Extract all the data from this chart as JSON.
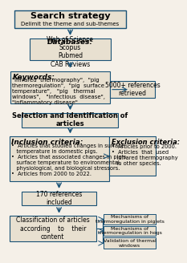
{
  "bg_color": "#f5f0e8",
  "box_bg": "#e8e0d0",
  "arrow_color": "#1a5276",
  "border_color": "#1a5276",
  "title_text": "Search strategy",
  "title_sub": "Delimit the theme and sub-themes",
  "db_title": "Databases:",
  "db_items": "Web of Science\nScopus\nPubmed\nCAB Reviews",
  "kw_title": "Keywords:",
  "kw_body": "\"infrared  thermography\",  \"pig\nthermoregulation\",  \"pig  surface\ntemperature\",   \"pig   thermal\nwindows\",   \"infectious  disease\",\n\"inflammatory disease\"",
  "ref_text": "5000+ references\nretrieved",
  "sel_text": "Selection and identification of\narticles",
  "inc_title": "Inclusion criteria:",
  "inc_body": "•  Articles that studied changes in surface\n   temperature in domestic pigs.\n•  Articles that associated changes in pig's\n   surface temperature to environmental,\n   physiological, and biological stressors.\n•  Articles from 2000 to 2022.",
  "exc_title": "Exclusion criteria:",
  "exc_body": "•  Articles prior to 2000.\n•  Articles  that  used\n   infrared thermography\n   in other species.",
  "ref170_text": "170 references\nincluded",
  "class_text": "Classification of articles\naccording    to    their\ncontent",
  "out1": "Mechanisms of\nthermoregulation in piglets",
  "out2": "Mechanisms of\nthermoregulation in hogs",
  "out3": "Validation of thermal\nwindows"
}
